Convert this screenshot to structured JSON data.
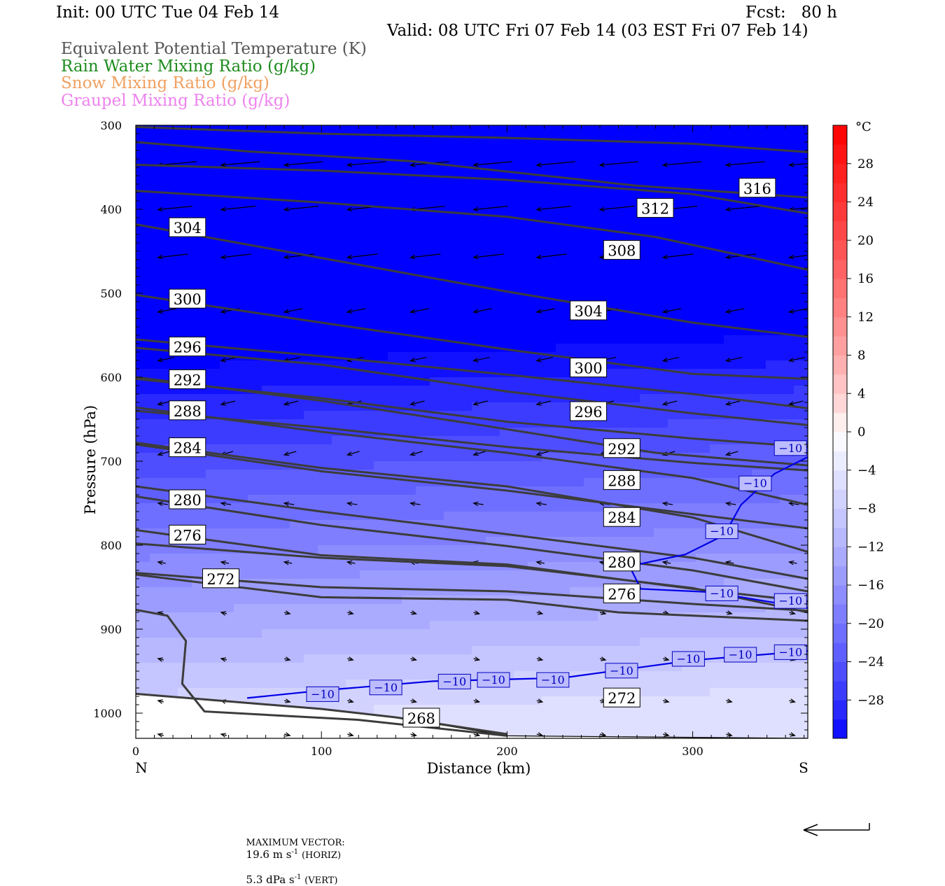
{
  "header": {
    "init": "Init: 00 UTC Tue 04 Feb 14",
    "fcst_label": "Fcst:",
    "fcst_value": "80 h",
    "valid": "Valid: 08 UTC Fri 07 Feb 14 (03 EST Fri 07 Feb 14)"
  },
  "legend_titles": [
    {
      "text": "Equivalent Potential Temperature (K)",
      "color": "#555555"
    },
    {
      "text": "Rain Water Mixing Ratio (g/kg)",
      "color": "#1e8c1e"
    },
    {
      "text": "Snow Mixing Ratio (g/kg)",
      "color": "#f0a060"
    },
    {
      "text": "Graupel Mixing Ratio (g/kg)",
      "color": "#ee82ee"
    }
  ],
  "footer": {
    "max_vector_label": "MAXIMUM VECTOR:",
    "horiz": "19.6 m s",
    "horiz_sup": "-1",
    "horiz_unit": "(HORIZ)",
    "vert": "5.3 dPa s",
    "vert_sup": "-1",
    "vert_unit": "(VERT)"
  },
  "chart_data": {
    "type": "contour",
    "xlabel": "Distance (km)",
    "ylabel": "Pressure (hPa)",
    "x_ticks": [
      "0",
      "100",
      "200",
      "300"
    ],
    "x_tick_values": [
      0,
      100,
      200,
      300
    ],
    "x_end_labels": {
      "left": "N",
      "right": "S"
    },
    "xlim": [
      0,
      362
    ],
    "y_ticks": [
      "300",
      "400",
      "500",
      "600",
      "700",
      "800",
      "900",
      "1000"
    ],
    "y_tick_values": [
      300,
      400,
      500,
      600,
      700,
      800,
      900,
      1000
    ],
    "ylim": [
      300,
      1030
    ],
    "colorbar": {
      "unit": "°C",
      "labels": [
        "28",
        "24",
        "20",
        "16",
        "12",
        "8",
        "4",
        "0",
        "−4",
        "−8",
        "−12",
        "−16",
        "−20",
        "−24",
        "−28"
      ],
      "label_values": [
        28,
        24,
        20,
        16,
        12,
        8,
        4,
        0,
        -4,
        -8,
        -12,
        -16,
        -20,
        -24,
        -28
      ],
      "range": [
        -32,
        32
      ],
      "step": 2
    },
    "theta_e_contours": [
      {
        "label": "316",
        "points": [
          [
            0,
            302
          ],
          [
            100,
            310
          ],
          [
            200,
            315
          ],
          [
            300,
            322
          ],
          [
            362,
            332
          ]
        ],
        "label_at": [
          325,
          374
        ]
      },
      {
        "label": "312",
        "points": [
          [
            0,
            320
          ],
          [
            60,
            331
          ],
          [
            150,
            343
          ],
          [
            270,
            372
          ],
          [
            362,
            386
          ]
        ],
        "label_at": [
          270,
          398
        ]
      },
      {
        "label": "308",
        "points": [
          [
            0,
            347
          ],
          [
            100,
            354
          ],
          [
            200,
            365
          ],
          [
            300,
            382
          ],
          [
            362,
            405
          ]
        ],
        "label_at": [
          252,
          448
        ]
      },
      {
        "label": "304",
        "points": [
          [
            0,
            378
          ],
          [
            100,
            392
          ],
          [
            200,
            409
          ],
          [
            280,
            433
          ],
          [
            362,
            472
          ]
        ],
        "label_at": [
          18,
          421
        ]
      },
      {
        "label": "304",
        "points": [
          [
            0,
            418
          ],
          [
            100,
            458
          ],
          [
            200,
            498
          ],
          [
            300,
            535
          ],
          [
            362,
            552
          ]
        ],
        "label_at": [
          234,
          520
        ]
      },
      {
        "label": "300",
        "points": [
          [
            0,
            502
          ],
          [
            100,
            535
          ],
          [
            200,
            567
          ],
          [
            300,
            596
          ],
          [
            362,
            602
          ]
        ],
        "label_at": [
          18,
          506
        ]
      },
      {
        "label": "300",
        "points": [
          [
            0,
            555
          ],
          [
            100,
            575
          ],
          [
            200,
            597
          ],
          [
            300,
            620
          ],
          [
            362,
            637
          ]
        ],
        "label_at": [
          234,
          588
        ]
      },
      {
        "label": "296",
        "points": [
          [
            0,
            565
          ],
          [
            100,
            585
          ],
          [
            200,
            617
          ],
          [
            300,
            643
          ],
          [
            362,
            657
          ]
        ],
        "label_at": [
          18,
          563
        ]
      },
      {
        "label": "296",
        "points": [
          [
            0,
            602
          ],
          [
            100,
            625
          ],
          [
            200,
            653
          ],
          [
            300,
            673
          ],
          [
            362,
            683
          ]
        ],
        "label_at": [
          234,
          640
        ]
      },
      {
        "label": "292",
        "points": [
          [
            0,
            600
          ],
          [
            100,
            628
          ],
          [
            180,
            655
          ],
          [
            280,
            690
          ],
          [
            362,
            705
          ]
        ],
        "label_at": [
          18,
          602
        ]
      },
      {
        "label": "292",
        "points": [
          [
            0,
            640
          ],
          [
            100,
            660
          ],
          [
            200,
            683
          ],
          [
            300,
            702
          ],
          [
            362,
            711
          ]
        ],
        "label_at": [
          252,
          684
        ]
      },
      {
        "label": "288",
        "points": [
          [
            0,
            636
          ],
          [
            100,
            665
          ],
          [
            200,
            690
          ],
          [
            300,
            720
          ],
          [
            362,
            752
          ]
        ],
        "label_at": [
          18,
          639
        ]
      },
      {
        "label": "288",
        "points": [
          [
            0,
            680
          ],
          [
            100,
            712
          ],
          [
            200,
            735
          ],
          [
            300,
            763
          ],
          [
            362,
            780
          ]
        ],
        "label_at": [
          252,
          722
        ]
      },
      {
        "label": "284",
        "points": [
          [
            0,
            678
          ],
          [
            100,
            708
          ],
          [
            200,
            730
          ],
          [
            300,
            767
          ],
          [
            362,
            808
          ]
        ],
        "label_at": [
          18,
          683
        ]
      },
      {
        "label": "284",
        "points": [
          [
            0,
            730
          ],
          [
            100,
            760
          ],
          [
            200,
            787
          ],
          [
            300,
            815
          ],
          [
            362,
            840
          ]
        ],
        "label_at": [
          252,
          766
        ]
      },
      {
        "label": "280",
        "points": [
          [
            0,
            742
          ],
          [
            100,
            776
          ],
          [
            200,
            801
          ],
          [
            300,
            830
          ],
          [
            362,
            855
          ]
        ],
        "label_at": [
          18,
          745
        ]
      },
      {
        "label": "280",
        "points": [
          [
            0,
            798
          ],
          [
            100,
            815
          ],
          [
            200,
            825
          ],
          [
            300,
            851
          ],
          [
            362,
            880
          ]
        ],
        "label_at": [
          252,
          819
        ]
      },
      {
        "label": "276",
        "points": [
          [
            0,
            782
          ],
          [
            100,
            812
          ],
          [
            200,
            823
          ],
          [
            300,
            852
          ],
          [
            362,
            867
          ]
        ],
        "label_at": [
          18,
          787
        ]
      },
      {
        "label": "276",
        "points": [
          [
            0,
            833
          ],
          [
            100,
            850
          ],
          [
            200,
            855
          ],
          [
            300,
            870
          ],
          [
            362,
            878
          ]
        ],
        "label_at": [
          252,
          857
        ]
      },
      {
        "label": "272",
        "points": [
          [
            0,
            835
          ],
          [
            100,
            862
          ],
          [
            200,
            865
          ],
          [
            260,
            880
          ],
          [
            362,
            890
          ]
        ],
        "label_at": [
          36,
          839
        ]
      },
      {
        "label": "272",
        "points": [
          [
            0,
            877
          ],
          [
            17,
            884
          ],
          [
            27,
            914
          ],
          [
            25,
            965
          ],
          [
            37,
            998
          ],
          [
            120,
            1008
          ],
          [
            200,
            1027
          ]
        ],
        "label_at": [
          252,
          981
        ]
      },
      {
        "label": "268",
        "points": [
          [
            0,
            977
          ],
          [
            100,
            995
          ],
          [
            140,
            1005
          ],
          [
            200,
            1025
          ]
        ],
        "label_at": [
          144,
          1005
        ]
      }
    ],
    "temp_minus10_contours": [
      {
        "label": "−10",
        "points": [
          [
            60,
            982
          ],
          [
            100,
            973
          ],
          [
            160,
            962
          ],
          [
            230,
            958
          ],
          [
            300,
            937
          ],
          [
            362,
            926
          ]
        ],
        "label_positions": [
          [
            92,
            977
          ],
          [
            126,
            969
          ],
          [
            163,
            962
          ],
          [
            184,
            960
          ],
          [
            216,
            960
          ],
          [
            253,
            949
          ],
          [
            289,
            935
          ],
          [
            317,
            930
          ],
          [
            344,
            927
          ]
        ]
      },
      {
        "label": "−10",
        "points": [
          [
            266,
            825
          ],
          [
            296,
            811
          ],
          [
            317,
            788
          ],
          [
            326,
            752
          ],
          [
            344,
            715
          ],
          [
            362,
            695
          ]
        ],
        "label_positions": [
          [
            344,
            684
          ],
          [
            325,
            726
          ],
          [
            307,
            783
          ]
        ]
      },
      {
        "label": "−10",
        "points": [
          [
            266,
            825
          ],
          [
            272,
            852
          ],
          [
            310,
            856
          ],
          [
            362,
            875
          ]
        ],
        "label_positions": [
          [
            307,
            857
          ],
          [
            344,
            866
          ]
        ]
      }
    ],
    "wind_vectors_note": "Wind vectors in plane of section; maximum vector 19.6 m s-1 (horizontal), 5.3 dPa s-1 (vertical)"
  }
}
